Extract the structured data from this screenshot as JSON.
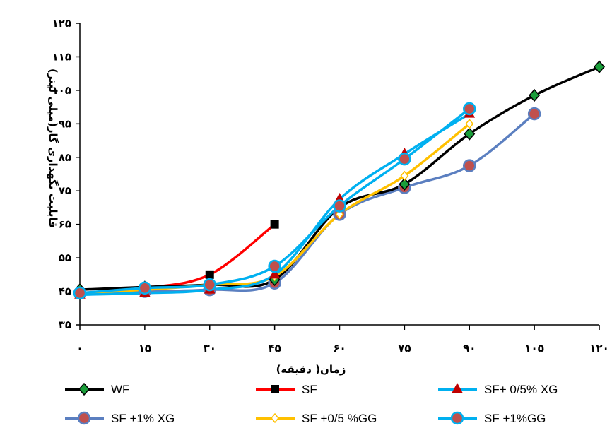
{
  "chart_data": {
    "type": "line",
    "xlabel": "زمان( دقیقه)",
    "ylabel": "قابلیت نگهداری گاز(میلی لیتر)",
    "x": [
      0,
      15,
      30,
      45,
      60,
      75,
      90,
      105,
      120
    ],
    "x_tick_labels": [
      "۰",
      "۱۵",
      "۳۰",
      "۴۵",
      "۶۰",
      "۷۵",
      "۹۰",
      "۱۰۵",
      "۱۲۰"
    ],
    "xlim": [
      0,
      120
    ],
    "y_ticks": [
      35,
      45,
      55,
      65,
      75,
      85,
      95,
      105,
      115,
      125
    ],
    "y_tick_labels": [
      "۳۵",
      "۴۵",
      "۵۵",
      "۶۵",
      "۷۵",
      "۸۵",
      "۹۵",
      "۱۰۵",
      "۱۱۵",
      "۱۲۵"
    ],
    "ylim": [
      35,
      125
    ],
    "grid": false,
    "legend_position": "bottom",
    "series": [
      {
        "name": "WF",
        "color": "#000000",
        "marker": "diamond",
        "marker_fill": "#1a9e3a",
        "x": [
          0,
          15,
          30,
          45,
          60,
          75,
          90,
          105,
          120
        ],
        "y": [
          45.5,
          46.3,
          47,
          48.5,
          70,
          77,
          92,
          103.5,
          112
        ]
      },
      {
        "name": "SF",
        "color": "#ff0000",
        "marker": "square",
        "marker_fill": "#000000",
        "x": [
          0,
          15,
          30,
          45
        ],
        "y": [
          44.5,
          46,
          50,
          65
        ]
      },
      {
        "name": "SF+ 0/5% XG",
        "color": "#00b0f0",
        "marker": "triangle",
        "marker_fill": "#c00000",
        "x": [
          0,
          15,
          30,
          45,
          60,
          75,
          90
        ],
        "y": [
          44,
          44.5,
          45.5,
          50,
          72.5,
          86,
          98
        ]
      },
      {
        "name": "SF +1% XG",
        "color": "#5b7fc0",
        "marker": "circle",
        "marker_fill": "#c0504d",
        "x": [
          0,
          15,
          30,
          45,
          60,
          75,
          90,
          105
        ],
        "y": [
          44.5,
          45,
          45.5,
          47.5,
          68,
          76,
          82.5,
          98
        ]
      },
      {
        "name": "SF +0/5 %GG",
        "color": "#ffc000",
        "marker": "diamond-open",
        "marker_fill": "#ffffff",
        "x": [
          0,
          15,
          30,
          45,
          60,
          75,
          90
        ],
        "y": [
          44.5,
          45.5,
          47,
          49.5,
          68,
          79.5,
          95
        ]
      },
      {
        "name": "SF +1%GG",
        "color": "#00b0f0",
        "marker": "circle",
        "marker_fill": "#c0504d",
        "x": [
          0,
          15,
          30,
          45,
          60,
          75,
          90
        ],
        "y": [
          44.5,
          46,
          47,
          52.5,
          70.5,
          84.5,
          99.5
        ]
      }
    ]
  }
}
